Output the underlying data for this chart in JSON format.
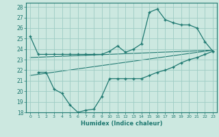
{
  "xlabel": "Humidex (Indice chaleur)",
  "background_color": "#cce8e0",
  "grid_color": "#9eccc4",
  "line_color": "#1e7870",
  "xlim": [
    -0.5,
    23.5
  ],
  "ylim": [
    18,
    28.4
  ],
  "xticks": [
    0,
    1,
    2,
    3,
    4,
    5,
    6,
    7,
    8,
    9,
    10,
    11,
    12,
    13,
    14,
    15,
    16,
    17,
    18,
    19,
    20,
    21,
    22,
    23
  ],
  "yticks": [
    18,
    19,
    20,
    21,
    22,
    23,
    24,
    25,
    26,
    27,
    28
  ],
  "series1_x": [
    0,
    1,
    2,
    3,
    4,
    5,
    6,
    7,
    8,
    9,
    10,
    11,
    12,
    13,
    14,
    15,
    16,
    17,
    18,
    19,
    20,
    21,
    22,
    23
  ],
  "series1_y": [
    25.2,
    23.5,
    23.5,
    23.5,
    23.5,
    23.5,
    23.5,
    23.5,
    23.5,
    23.5,
    23.8,
    24.3,
    23.7,
    24.0,
    24.5,
    27.5,
    27.8,
    26.8,
    26.5,
    26.3,
    26.3,
    26.0,
    24.7,
    23.8
  ],
  "series2_x": [
    1,
    2,
    3,
    4,
    5,
    6,
    7,
    8,
    9,
    10,
    11,
    12,
    13,
    14,
    15,
    16,
    17,
    18,
    19,
    20,
    21,
    22,
    23
  ],
  "series2_y": [
    21.8,
    21.8,
    20.2,
    19.8,
    18.7,
    18.0,
    18.2,
    18.3,
    19.5,
    21.2,
    21.2,
    21.2,
    21.2,
    21.2,
    21.5,
    21.8,
    22.0,
    22.3,
    22.7,
    23.0,
    23.2,
    23.5,
    23.8
  ],
  "series3_x": [
    0,
    23
  ],
  "series3_y": [
    23.2,
    23.9
  ],
  "series4_x": [
    0,
    23
  ],
  "series4_y": [
    21.5,
    23.9
  ]
}
